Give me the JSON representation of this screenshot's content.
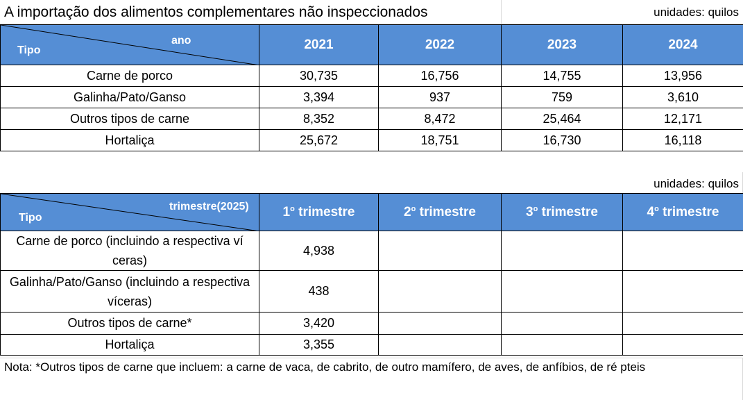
{
  "title": "A importação dos alimentos complementares não inspeccionados",
  "unit_label": "unidades: quilos",
  "annual": {
    "corner_top": "ano",
    "corner_bottom": "Tipo",
    "years": [
      "2021",
      "2022",
      "2023",
      "2024"
    ],
    "rows": [
      {
        "type": "Carne de porco",
        "values": [
          "30,735",
          "16,756",
          "14,755",
          "13,956"
        ]
      },
      {
        "type": "Galinha/Pato/Ganso",
        "values": [
          "3,394",
          "937",
          "759",
          "3,610"
        ]
      },
      {
        "type": "Outros tipos de carne",
        "values": [
          "8,352",
          "8,472",
          "25,464",
          "12,171"
        ]
      },
      {
        "type": "Hortaliça",
        "values": [
          "25,672",
          "18,751",
          "16,730",
          "16,118"
        ]
      }
    ]
  },
  "quarterly": {
    "corner_top": "trimestre(2025)",
    "corner_bottom": "Tipo",
    "quarters": [
      {
        "num": "1",
        "sup": "o",
        "label": " trimestre"
      },
      {
        "num": "2",
        "sup": "o",
        "label": " trimestre"
      },
      {
        "num": "3",
        "sup": "o",
        "label": " trimestre"
      },
      {
        "num": "4",
        "sup": "o",
        "label": " trimestre"
      }
    ],
    "rows": [
      {
        "type": "Carne de porco (incluindo a respectiva ví ceras)",
        "values": [
          "4,938",
          "",
          "",
          ""
        ]
      },
      {
        "type": "Galinha/Pato/Ganso (incluindo a respectiva víceras)",
        "values": [
          "438",
          "",
          "",
          ""
        ]
      },
      {
        "type": "Outros tipos de carne*",
        "values": [
          "3,420",
          "",
          "",
          ""
        ]
      },
      {
        "type": "Hortaliça",
        "values": [
          "3,355",
          "",
          "",
          ""
        ]
      }
    ]
  },
  "note": "Nota: *Outros tipos de carne que incluem: a carne de vaca, de cabrito, de outro mamífero, de aves, de anfíbios, de ré pteis",
  "colors": {
    "header_bg": "#558ED5",
    "header_text": "#FFFFFF"
  }
}
